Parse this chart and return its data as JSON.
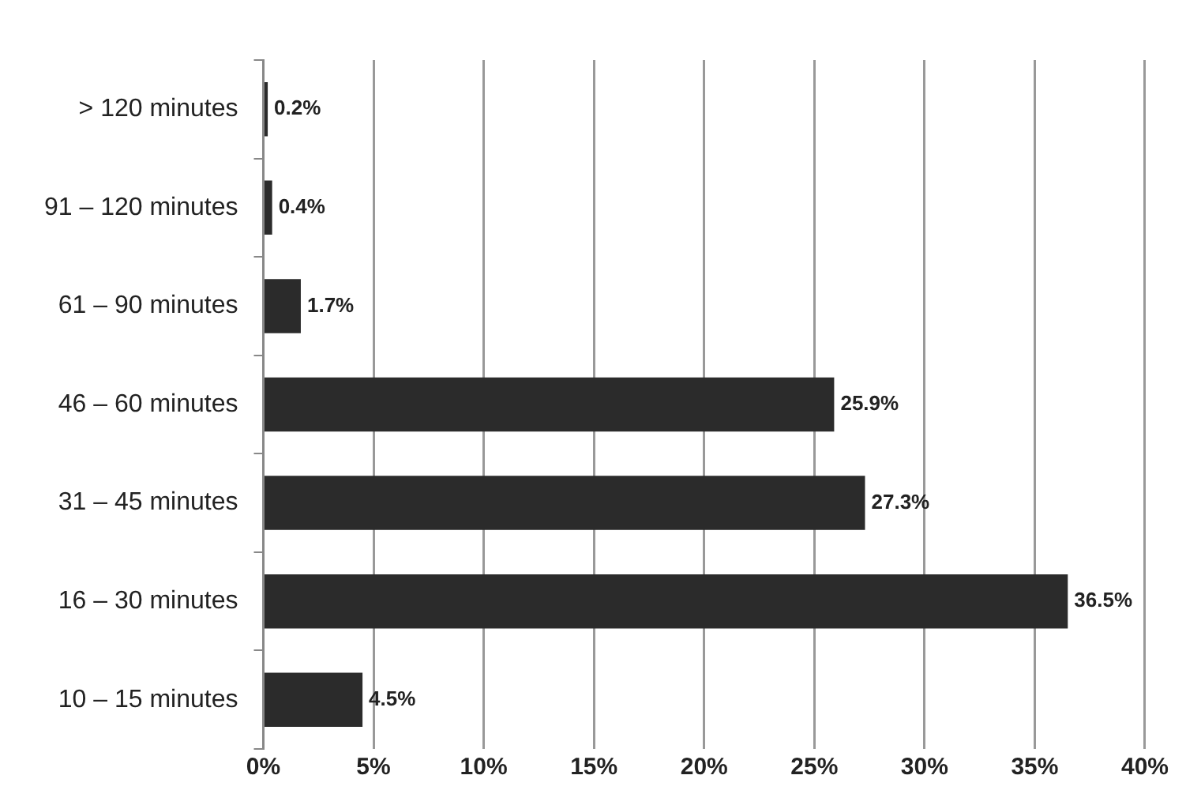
{
  "chart_data": {
    "type": "bar",
    "orientation": "horizontal",
    "categories": [
      "> 120 minutes",
      "91 – 120 minutes",
      "61 – 90 minutes",
      "46 – 60 minutes",
      "31 – 45 minutes",
      "16 – 30 minutes",
      "10 – 15 minutes"
    ],
    "values": [
      0.2,
      0.4,
      1.7,
      25.9,
      27.3,
      36.5,
      4.5
    ],
    "value_labels": [
      "0.2%",
      "0.4%",
      "1.7%",
      "25.9%",
      "27.3%",
      "36.5%",
      "4.5%"
    ],
    "color": "#2b2b2b",
    "xlim": [
      0,
      40
    ],
    "xticks": [
      {
        "value": 0,
        "label": "0%"
      },
      {
        "value": 5,
        "label": "5%"
      },
      {
        "value": 10,
        "label": "10%"
      },
      {
        "value": 15,
        "label": "15%"
      },
      {
        "value": 20,
        "label": "20%"
      },
      {
        "value": 25,
        "label": "25%"
      },
      {
        "value": 30,
        "label": "30%"
      },
      {
        "value": 35,
        "label": "35%"
      },
      {
        "value": 40,
        "label": "40%"
      }
    ],
    "grid": "x",
    "legend": false
  }
}
